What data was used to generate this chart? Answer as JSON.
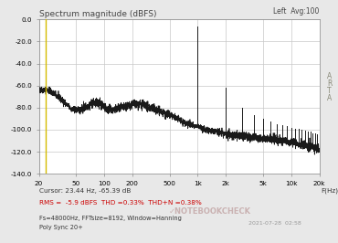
{
  "title": "Spectrum magnitude (dBFS)",
  "right_label": "Left  Avg:100",
  "arta_label": "A\nR\nT\nA",
  "ylabel_ticks": [
    0.0,
    -20.0,
    -40.0,
    -60.0,
    -80.0,
    -100.0,
    -120.0,
    -140.0
  ],
  "ylim_bottom": -140.0,
  "ylim_top": 0.0,
  "xtick_positions": [
    20,
    50,
    100,
    200,
    500,
    1000,
    2000,
    5000,
    10000,
    20000
  ],
  "xtick_labels": [
    "20",
    "50",
    "100",
    "200",
    "500",
    "1k",
    "2k",
    "5k",
    "10k",
    "20k"
  ],
  "xlabel": "F(Hz)",
  "cursor_text": "Cursor: 23.44 Hz, -65.39 dB",
  "rms_text": "RMS =  -5.9 dBFS  THD =0.33%  THD+N =0.38%",
  "info_text1": "Fs=48000Hz, FFTsize=8192, Window=Hanning",
  "info_text2": "Poly Sync 20+",
  "yellow_line_x": 23.44,
  "bg_color": "#e8e8e8",
  "plot_bg": "#ffffff",
  "line_color": "#1a1a1a",
  "grid_color": "#c8c8c8",
  "yellow_color": "#d4bc00",
  "rms_color": "#cc0000",
  "cursor_color": "#333333",
  "info_color": "#333333",
  "title_color": "#444444",
  "arta_color": "#888877",
  "date_text": "2021-07-28  02:58"
}
